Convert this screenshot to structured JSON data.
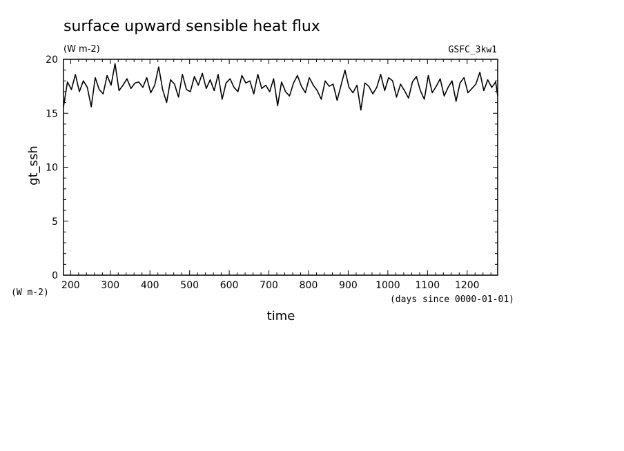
{
  "chart_data": {
    "type": "line",
    "title": "surface upward sensible heat flux",
    "subtitle": "(W m-2)",
    "tag": "GSFC_3kw1",
    "xlabel": "time",
    "xunits": "(days since 0000-01-01)",
    "ylabel": "gt_ssh",
    "yunits": "(W m-2)",
    "xlim": [
      182,
      1277
    ],
    "ylim": [
      0,
      20
    ],
    "xticks": [
      200,
      300,
      400,
      500,
      600,
      700,
      800,
      900,
      1000,
      1100,
      1200
    ],
    "yticks": [
      0,
      5,
      10,
      15,
      20
    ],
    "grid": false,
    "series": [
      {
        "x": [
          182,
          192,
          202,
          212,
          222,
          232,
          242,
          252,
          262,
          272,
          282,
          292,
          302,
          312,
          322,
          332,
          342,
          352,
          362,
          372,
          382,
          392,
          402,
          412,
          422,
          432,
          442,
          452,
          462,
          472,
          482,
          492,
          502,
          512,
          522,
          532,
          542,
          552,
          562,
          572,
          582,
          592,
          602,
          612,
          622,
          632,
          642,
          652,
          662,
          672,
          682,
          692,
          702,
          712,
          722,
          732,
          742,
          752,
          762,
          772,
          782,
          792,
          802,
          812,
          822,
          832,
          842,
          852,
          862,
          872,
          882,
          892,
          902,
          912,
          922,
          932,
          942,
          952,
          962,
          972,
          982,
          992,
          1002,
          1012,
          1022,
          1032,
          1042,
          1052,
          1062,
          1072,
          1082,
          1092,
          1102,
          1112,
          1122,
          1132,
          1142,
          1152,
          1162,
          1172,
          1182,
          1192,
          1202,
          1212,
          1222,
          1232,
          1242,
          1252,
          1262,
          1272,
          1277
        ],
        "y": [
          15.6,
          17.9,
          17.2,
          18.6,
          17.0,
          18.0,
          17.4,
          15.6,
          18.3,
          17.2,
          16.8,
          18.5,
          17.6,
          19.6,
          17.1,
          17.6,
          18.2,
          17.3,
          17.8,
          17.9,
          17.4,
          18.3,
          16.9,
          17.6,
          19.3,
          17.2,
          16.0,
          18.1,
          17.7,
          16.5,
          18.6,
          17.2,
          17.0,
          18.4,
          17.6,
          18.7,
          17.3,
          18.1,
          17.1,
          18.6,
          16.3,
          17.8,
          18.2,
          17.4,
          17.0,
          18.5,
          17.8,
          18.0,
          16.8,
          18.6,
          17.3,
          17.6,
          17.0,
          18.2,
          15.7,
          17.9,
          17.0,
          16.6,
          17.8,
          18.5,
          17.5,
          16.9,
          18.3,
          17.6,
          17.1,
          16.3,
          18.0,
          17.5,
          17.7,
          16.2,
          17.6,
          19.0,
          17.4,
          16.9,
          17.6,
          15.3,
          17.8,
          17.5,
          16.8,
          17.4,
          18.6,
          17.1,
          18.3,
          18.0,
          16.5,
          17.7,
          17.1,
          16.4,
          17.9,
          18.4,
          17.1,
          16.3,
          18.5,
          16.9,
          17.5,
          18.2,
          16.6,
          17.4,
          18.0,
          16.1,
          17.8,
          18.3,
          16.9,
          17.3,
          17.7,
          18.8,
          17.1,
          18.1,
          17.4,
          17.9,
          16.6
        ]
      }
    ]
  }
}
